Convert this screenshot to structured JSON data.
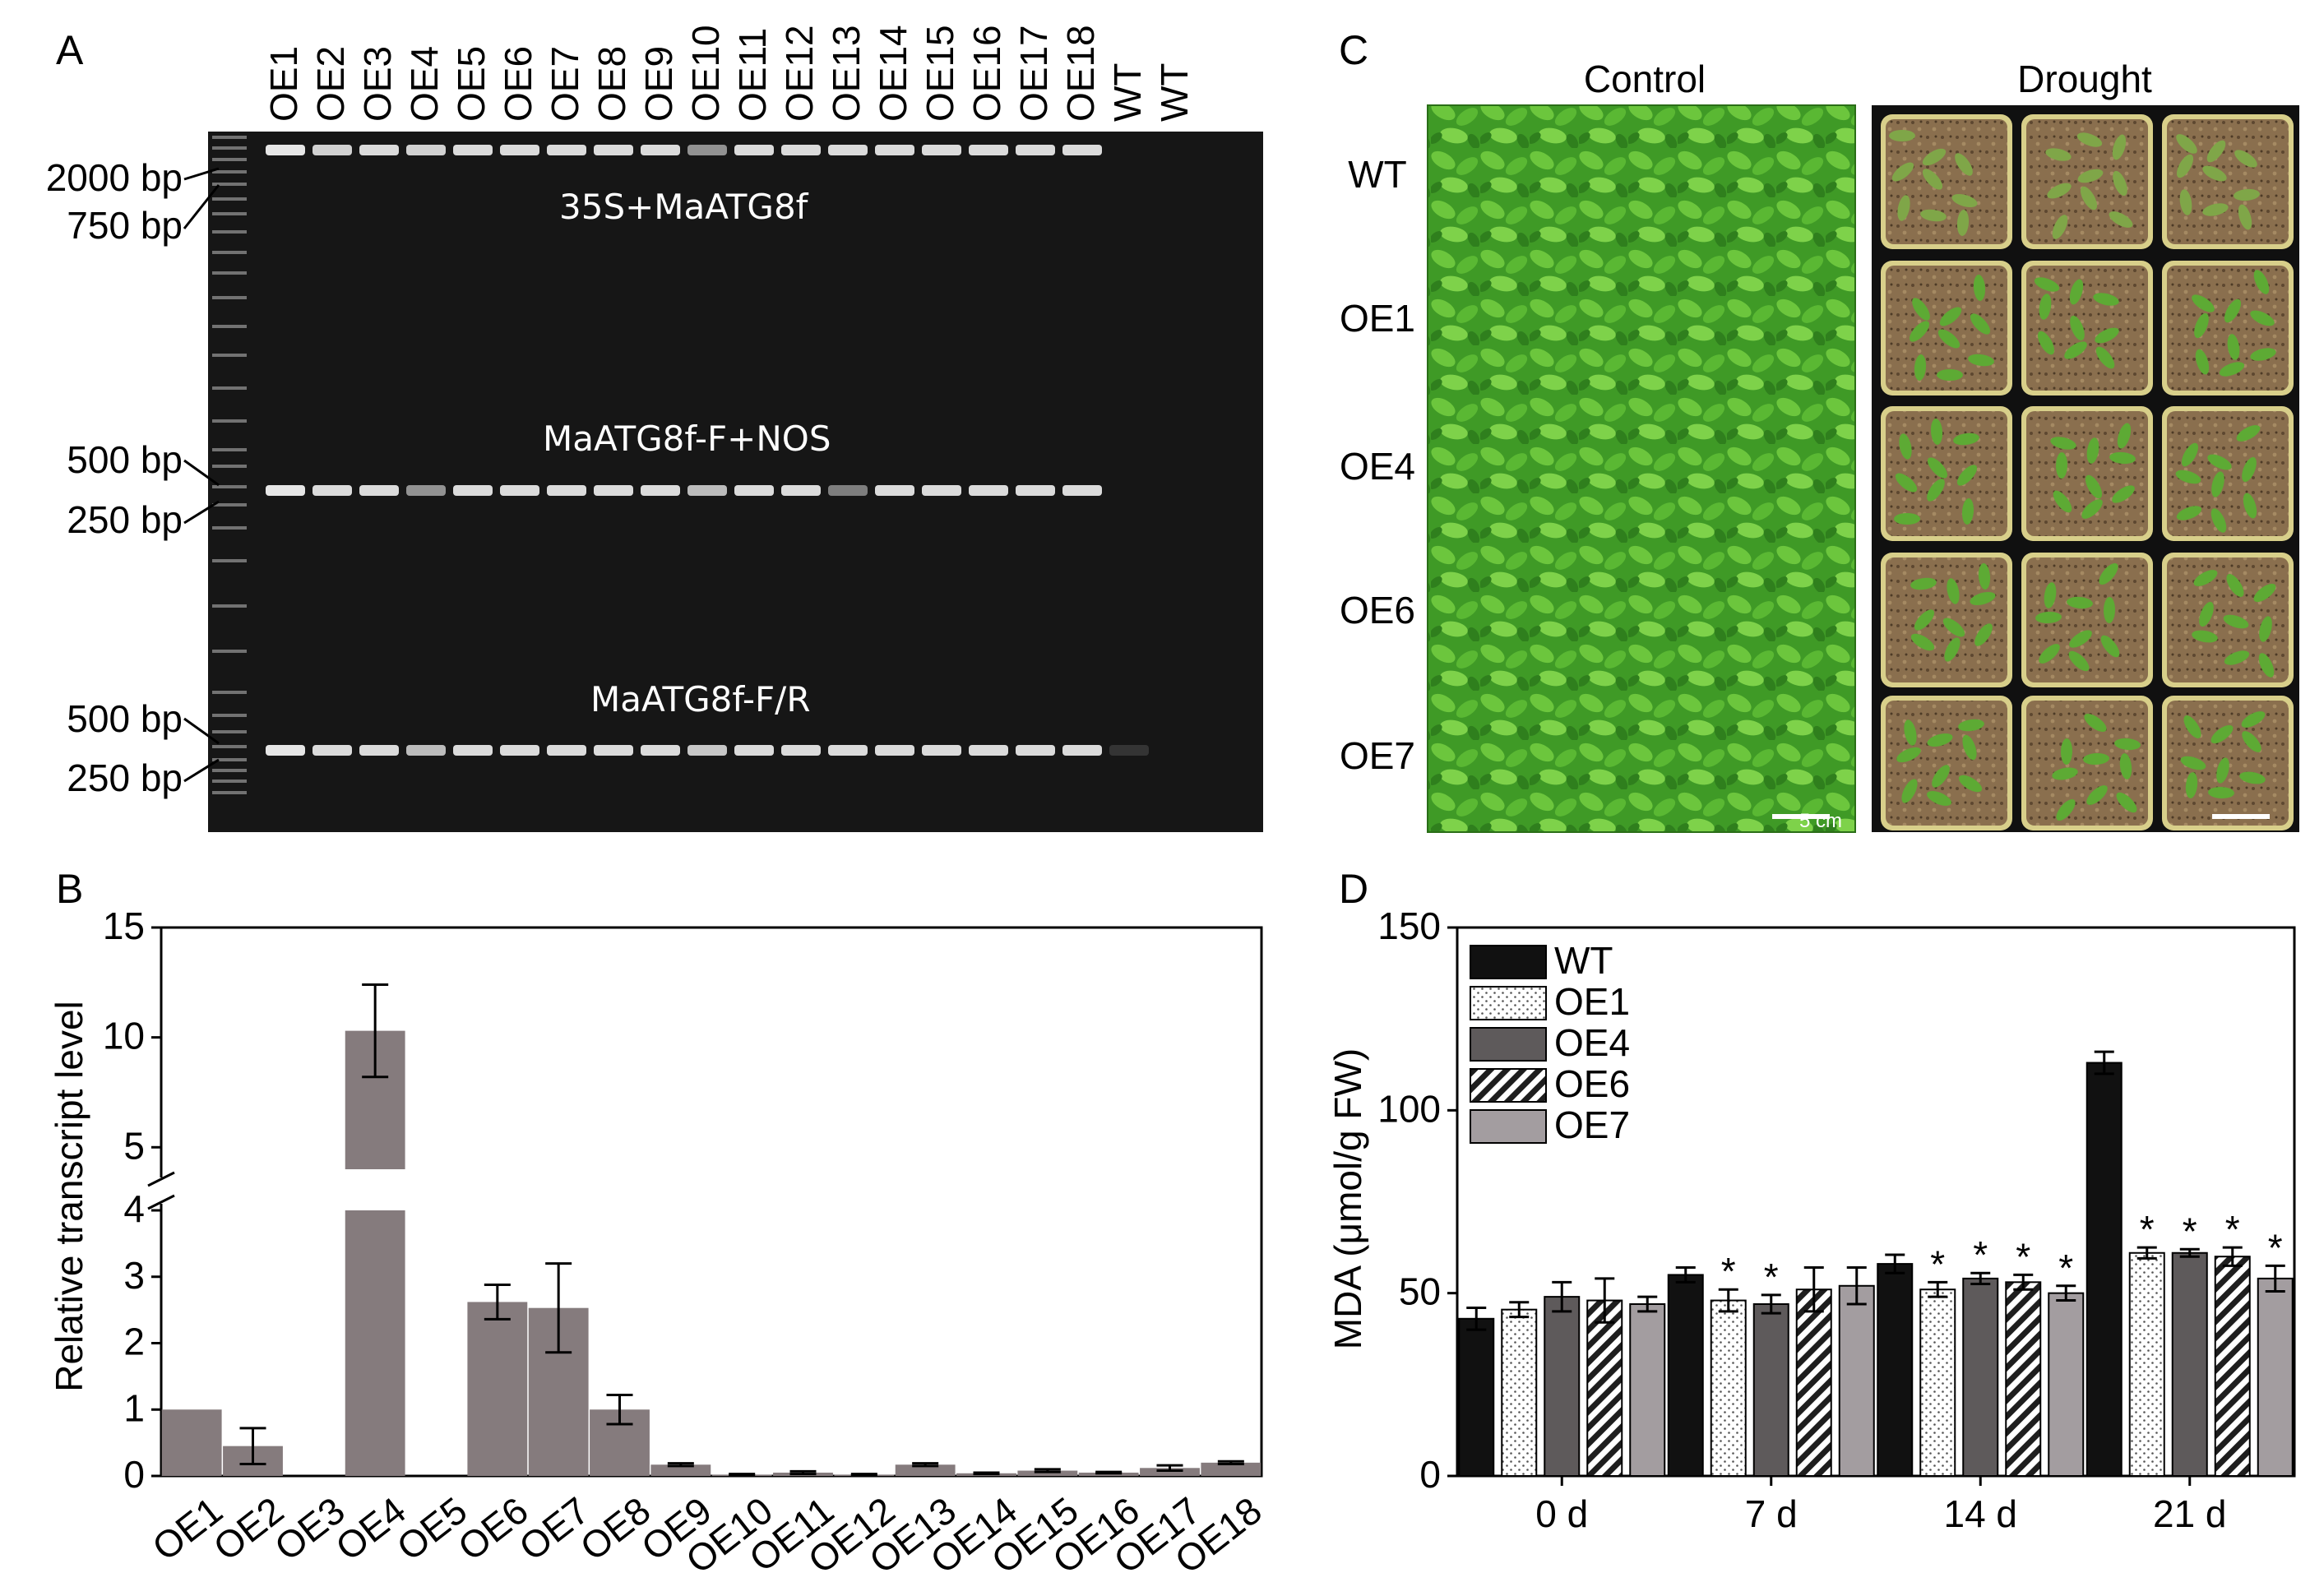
{
  "panels": {
    "a": {
      "letter": "A",
      "lane_labels": [
        "OE1",
        "OE2",
        "OE3",
        "OE4",
        "OE5",
        "OE6",
        "OE7",
        "OE8",
        "OE9",
        "OE10",
        "OE11",
        "OE12",
        "OE13",
        "OE14",
        "OE15",
        "OE16",
        "OE17",
        "OE18",
        "WT",
        "WT"
      ],
      "band_labels": [
        "35S+MaATG8f",
        "MaATG8f-F+NOS",
        "MaATG8f-F/R"
      ],
      "marker_labels": [
        "2000 bp",
        "750 bp",
        "500 bp",
        "250 bp",
        "500 bp",
        "250 bp"
      ],
      "band_intensity_row1": [
        1,
        0.9,
        0.95,
        0.9,
        0.95,
        0.95,
        0.95,
        0.95,
        0.95,
        0.6,
        0.95,
        0.95,
        0.95,
        0.95,
        0.95,
        0.95,
        0.95,
        0.95,
        0,
        0
      ],
      "band_intensity_row2": [
        1,
        0.95,
        0.95,
        0.6,
        0.95,
        0.95,
        0.95,
        0.95,
        0.95,
        0.8,
        0.95,
        0.95,
        0.5,
        0.95,
        0.95,
        0.95,
        0.95,
        0.95,
        0,
        0
      ],
      "band_intensity_row3": [
        1,
        0.95,
        0.95,
        0.8,
        0.95,
        0.95,
        0.95,
        0.95,
        0.95,
        0.85,
        0.95,
        0.95,
        0.95,
        0.95,
        0.95,
        0.95,
        0.95,
        0.95,
        0.15,
        0
      ]
    },
    "c": {
      "letter": "C",
      "column_labels": [
        "Control",
        "Drought"
      ],
      "row_labels": [
        "WT",
        "OE1",
        "OE4",
        "OE6",
        "OE7"
      ],
      "scale_label": "5 cm"
    }
  },
  "colors": {
    "gel_bg": "#161616",
    "band": "#e6e6e6",
    "bar_b": "#857b7d",
    "wt": "#111111",
    "oe1": "#ffffff",
    "oe4": "#5e5a5b",
    "oe6": "#232323",
    "oe7": "#a39da0",
    "leaf": "#4fb02f",
    "soil": "#8a6f4e"
  },
  "chart_data": [
    {
      "letter": "B",
      "type": "bar",
      "ylabel": "Relative transcript level",
      "categories": [
        "OE1",
        "OE2",
        "OE3",
        "OE4",
        "OE5",
        "OE6",
        "OE7",
        "OE8",
        "OE9",
        "OE10",
        "OE11",
        "OE12",
        "OE13",
        "OE14",
        "OE15",
        "OE16",
        "OE17",
        "OE18"
      ],
      "values": [
        1.0,
        0.45,
        0.0,
        10.3,
        0.0,
        2.62,
        2.53,
        1.0,
        0.17,
        0.02,
        0.05,
        0.02,
        0.17,
        0.04,
        0.08,
        0.05,
        0.12,
        0.2
      ],
      "errors": [
        0.0,
        0.27,
        0.0,
        2.1,
        0.0,
        0.26,
        0.67,
        0.22,
        0.02,
        0.01,
        0.02,
        0.01,
        0.02,
        0.01,
        0.02,
        0.01,
        0.04,
        0.02
      ],
      "broken_axis": {
        "lower_range": [
          0,
          4
        ],
        "upper_range": [
          4,
          15
        ]
      },
      "yticks_lower": [
        "0",
        "1",
        "2",
        "3",
        "4"
      ],
      "yticks_upper": [
        "5",
        "10",
        "15"
      ]
    },
    {
      "letter": "D",
      "type": "bar",
      "ylabel": "MDA (μmol/g FW)",
      "ylim": [
        0,
        150
      ],
      "yticks": [
        "0",
        "50",
        "100",
        "150"
      ],
      "categories": [
        "0 d",
        "7 d",
        "14 d",
        "21 d"
      ],
      "legend": {
        "position": "top-left"
      },
      "series": [
        {
          "name": "WT",
          "values": [
            43,
            55,
            58,
            113
          ],
          "errors": [
            3,
            2,
            2.5,
            3
          ],
          "signif": [
            false,
            false,
            false,
            false
          ]
        },
        {
          "name": "OE1",
          "values": [
            45.5,
            48,
            51,
            61
          ],
          "errors": [
            2,
            3,
            2,
            1.5
          ],
          "signif": [
            false,
            true,
            true,
            true
          ]
        },
        {
          "name": "OE4",
          "values": [
            49,
            47,
            54,
            61
          ],
          "errors": [
            4,
            2.5,
            1.5,
            1
          ],
          "signif": [
            false,
            true,
            true,
            true
          ]
        },
        {
          "name": "OE6",
          "values": [
            48,
            51,
            53,
            60
          ],
          "errors": [
            6,
            6,
            2,
            2.5
          ],
          "signif": [
            false,
            false,
            true,
            true
          ]
        },
        {
          "name": "OE7",
          "values": [
            47,
            52,
            50,
            54
          ],
          "errors": [
            2,
            5,
            2,
            3.5
          ],
          "signif": [
            false,
            false,
            true,
            true
          ]
        }
      ],
      "signif_marker": "*"
    }
  ]
}
